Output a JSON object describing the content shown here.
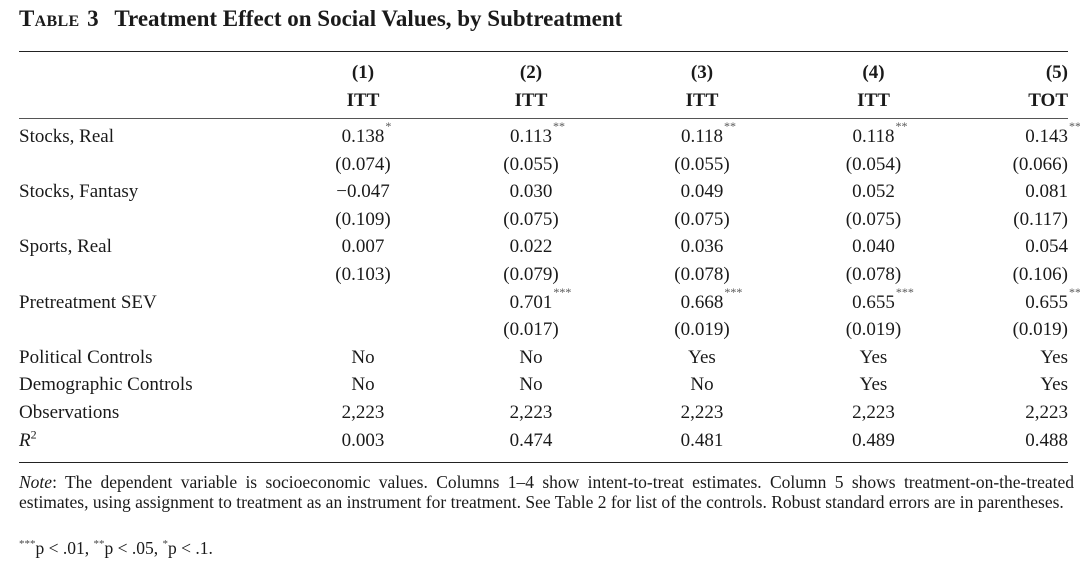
{
  "title": {
    "label": "Table",
    "number": "3",
    "text": "Treatment Effect on Social Values, by Subtreatment"
  },
  "columns": [
    {
      "num": "(1)",
      "type": "ITT"
    },
    {
      "num": "(2)",
      "type": "ITT"
    },
    {
      "num": "(3)",
      "type": "ITT"
    },
    {
      "num": "(4)",
      "type": "ITT"
    },
    {
      "num": "(5)",
      "type": "TOT"
    }
  ],
  "rows": [
    {
      "label": "Stocks, Real",
      "cells": [
        {
          "v": "0.138",
          "s": "*"
        },
        {
          "v": "0.113",
          "s": "**"
        },
        {
          "v": "0.118",
          "s": "**"
        },
        {
          "v": "0.118",
          "s": "**"
        },
        {
          "v": "0.143",
          "s": "**"
        }
      ]
    },
    {
      "label": "",
      "cells": [
        {
          "v": "(0.074)",
          "s": ""
        },
        {
          "v": "(0.055)",
          "s": ""
        },
        {
          "v": "(0.055)",
          "s": ""
        },
        {
          "v": "(0.054)",
          "s": ""
        },
        {
          "v": "(0.066)",
          "s": ""
        }
      ]
    },
    {
      "label": "Stocks, Fantasy",
      "cells": [
        {
          "v": "−0.047",
          "s": ""
        },
        {
          "v": "0.030",
          "s": ""
        },
        {
          "v": "0.049",
          "s": ""
        },
        {
          "v": "0.052",
          "s": ""
        },
        {
          "v": "0.081",
          "s": ""
        }
      ]
    },
    {
      "label": "",
      "cells": [
        {
          "v": "(0.109)",
          "s": ""
        },
        {
          "v": "(0.075)",
          "s": ""
        },
        {
          "v": "(0.075)",
          "s": ""
        },
        {
          "v": "(0.075)",
          "s": ""
        },
        {
          "v": "(0.117)",
          "s": ""
        }
      ]
    },
    {
      "label": "Sports, Real",
      "cells": [
        {
          "v": "0.007",
          "s": ""
        },
        {
          "v": "0.022",
          "s": ""
        },
        {
          "v": "0.036",
          "s": ""
        },
        {
          "v": "0.040",
          "s": ""
        },
        {
          "v": "0.054",
          "s": ""
        }
      ]
    },
    {
      "label": "",
      "cells": [
        {
          "v": "(0.103)",
          "s": ""
        },
        {
          "v": "(0.079)",
          "s": ""
        },
        {
          "v": "(0.078)",
          "s": ""
        },
        {
          "v": "(0.078)",
          "s": ""
        },
        {
          "v": "(0.106)",
          "s": ""
        }
      ]
    },
    {
      "label": "Pretreatment SEV",
      "cells": [
        {
          "v": "",
          "s": ""
        },
        {
          "v": "0.701",
          "s": "***"
        },
        {
          "v": "0.668",
          "s": "***"
        },
        {
          "v": "0.655",
          "s": "***"
        },
        {
          "v": "0.655",
          "s": "***"
        }
      ]
    },
    {
      "label": "",
      "cells": [
        {
          "v": "",
          "s": ""
        },
        {
          "v": "(0.017)",
          "s": ""
        },
        {
          "v": "(0.019)",
          "s": ""
        },
        {
          "v": "(0.019)",
          "s": ""
        },
        {
          "v": "(0.019)",
          "s": ""
        }
      ]
    },
    {
      "label": "Political Controls",
      "cells": [
        {
          "v": "No",
          "s": ""
        },
        {
          "v": "No",
          "s": ""
        },
        {
          "v": "Yes",
          "s": ""
        },
        {
          "v": "Yes",
          "s": ""
        },
        {
          "v": "Yes",
          "s": ""
        }
      ]
    },
    {
      "label": "Demographic Controls",
      "cells": [
        {
          "v": "No",
          "s": ""
        },
        {
          "v": "No",
          "s": ""
        },
        {
          "v": "No",
          "s": ""
        },
        {
          "v": "Yes",
          "s": ""
        },
        {
          "v": "Yes",
          "s": ""
        }
      ]
    },
    {
      "label": "Observations",
      "cells": [
        {
          "v": "2,223",
          "s": ""
        },
        {
          "v": "2,223",
          "s": ""
        },
        {
          "v": "2,223",
          "s": ""
        },
        {
          "v": "2,223",
          "s": ""
        },
        {
          "v": "2,223",
          "s": ""
        }
      ]
    }
  ],
  "r2_row": {
    "label": "R",
    "label_sup": "2",
    "cells": [
      "0.003",
      "0.474",
      "0.481",
      "0.489",
      "0.488"
    ]
  },
  "note": {
    "lead": "Note",
    "text": ": The dependent variable is socioeconomic values. Columns 1–4 show intent-to-treat estimates. Column 5 shows treatment-on-the-treated estimates, using assignment to treatment as an instrument for treatment. See Table 2 for list of the controls. Robust standard errors are in parentheses."
  },
  "significance": [
    {
      "stars": "***",
      "text": "p < .01, "
    },
    {
      "stars": "**",
      "text": "p < .05, "
    },
    {
      "stars": "*",
      "text": "p < .1."
    }
  ]
}
